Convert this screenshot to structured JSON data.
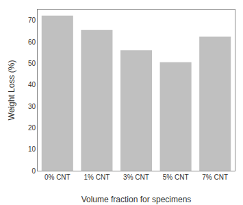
{
  "chart_data": {
    "type": "bar",
    "categories": [
      "0% CNT",
      "1% CNT",
      "3% CNT",
      "5% CNT",
      "7% CNT"
    ],
    "values": [
      72.2,
      65.5,
      56.1,
      50.5,
      62.4
    ],
    "color": "#c0c0c0",
    "xlabel": "Volume fraction for specimens",
    "ylabel": "Weight Loss (%)",
    "ylim": [
      0,
      75
    ],
    "yticks": [
      0,
      10,
      20,
      30,
      40,
      50,
      60,
      70
    ],
    "grid": false
  }
}
